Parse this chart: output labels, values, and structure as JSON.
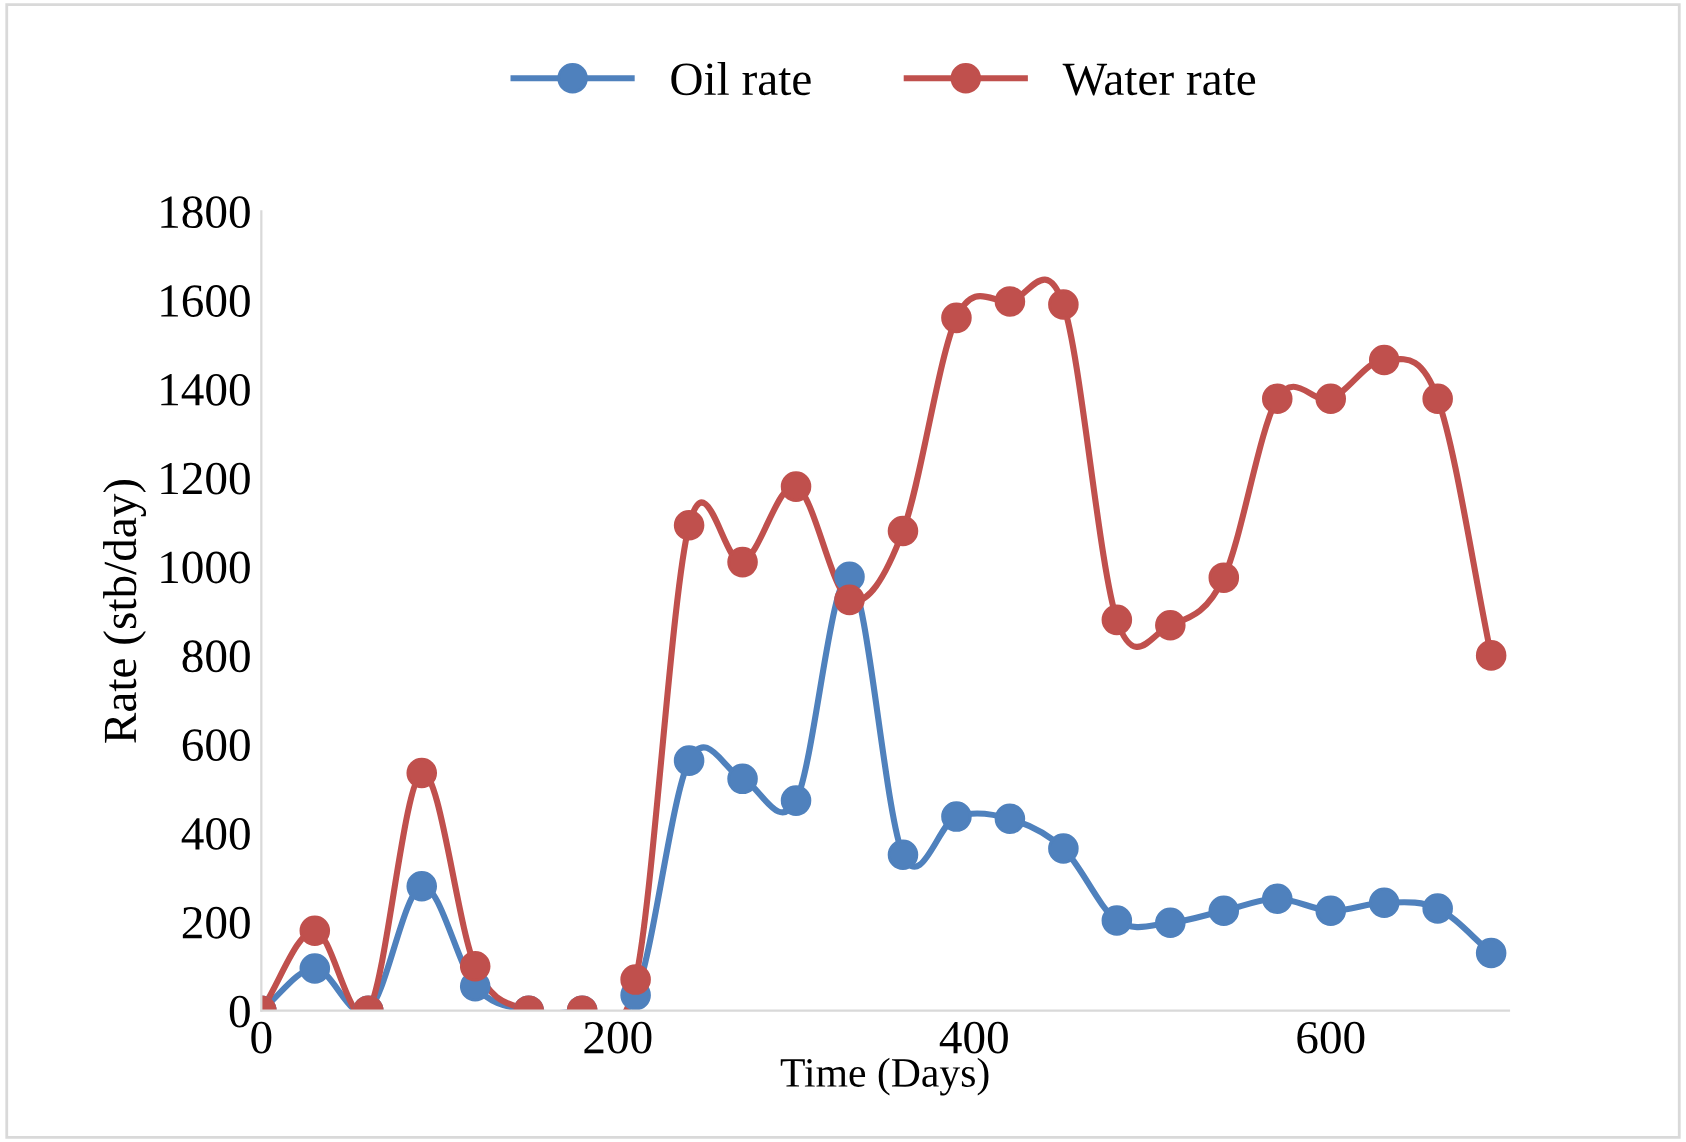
{
  "chart_data": {
    "type": "line",
    "xlabel": "Time (Days)",
    "ylabel": "Rate (stb/day)",
    "x": [
      0,
      30,
      60,
      90,
      120,
      150,
      180,
      210,
      240,
      270,
      300,
      330,
      360,
      390,
      420,
      450,
      480,
      510,
      540,
      570,
      600,
      630,
      660,
      690
    ],
    "series": [
      {
        "name": "Oil rate",
        "color": "#4f81bd",
        "values": [
          0,
          95,
          0,
          280,
          55,
          0,
          0,
          35,
          563,
          522,
          473,
          977,
          351,
          437,
          432,
          365,
          203,
          198,
          225,
          252,
          225,
          243,
          230,
          130
        ]
      },
      {
        "name": "Water rate",
        "color": "#c0504d",
        "values": [
          0,
          180,
          0,
          535,
          100,
          0,
          0,
          70,
          1093,
          1010,
          1180,
          925,
          1080,
          1560,
          1597,
          1590,
          880,
          868,
          975,
          1378,
          1378,
          1465,
          1378,
          800
        ]
      }
    ],
    "xlim": [
      0,
      700
    ],
    "xticks": [
      0,
      200,
      400,
      600
    ],
    "ylim": [
      0,
      1800
    ],
    "yticks": [
      0,
      200,
      400,
      600,
      800,
      1000,
      1200,
      1400,
      1600,
      1800
    ],
    "grid": false,
    "legend": "top",
    "marker": "circle",
    "line_style": "solid"
  }
}
